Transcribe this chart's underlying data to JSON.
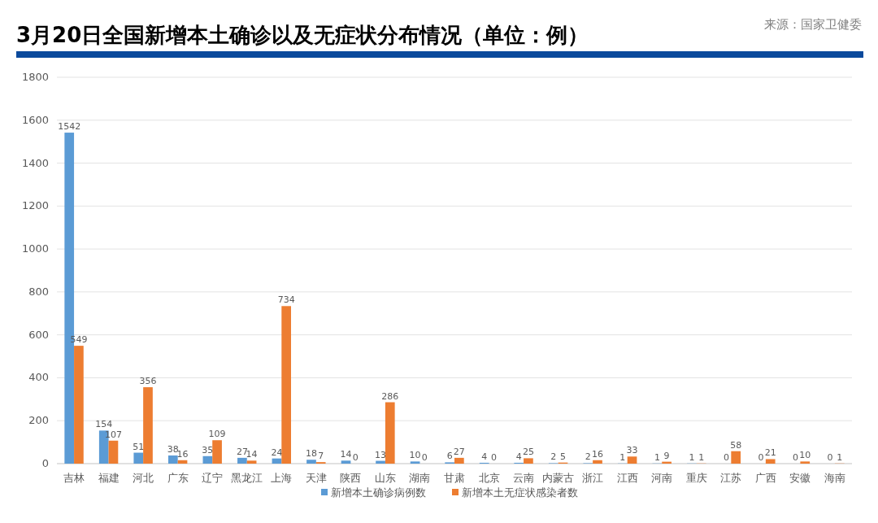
{
  "chart_data": {
    "type": "bar",
    "title": "3月20日全国新增本土确诊以及无症状分布情况（单位：例）",
    "annotations": [
      "来源：国家卫健委"
    ],
    "categories": [
      "吉林",
      "福建",
      "河北",
      "广东",
      "辽宁",
      "黑龙江",
      "上海",
      "天津",
      "陕西",
      "山东",
      "湖南",
      "甘肃",
      "北京",
      "云南",
      "内蒙古",
      "浙江",
      "江西",
      "河南",
      "重庆",
      "江苏",
      "广西",
      "安徽",
      "海南"
    ],
    "series": [
      {
        "name": "新增本土确诊病例数",
        "color": "#5b9bd5",
        "values": [
          1542,
          154,
          51,
          38,
          35,
          27,
          24,
          18,
          14,
          13,
          10,
          6,
          4,
          4,
          2,
          2,
          1,
          1,
          1,
          0,
          0,
          0,
          0
        ]
      },
      {
        "name": "新增本土无症状感染者数",
        "color": "#ed7d31",
        "values": [
          549,
          107,
          356,
          16,
          109,
          14,
          734,
          7,
          0,
          286,
          0,
          27,
          0,
          25,
          5,
          16,
          33,
          9,
          1,
          58,
          21,
          10,
          1
        ]
      }
    ],
    "ylim": [
      0,
      1800
    ],
    "yticks": [
      0,
      200,
      400,
      600,
      800,
      1000,
      1200,
      1400,
      1600,
      1800
    ],
    "grid": "y",
    "legend": "bottom",
    "data_labels": true
  }
}
